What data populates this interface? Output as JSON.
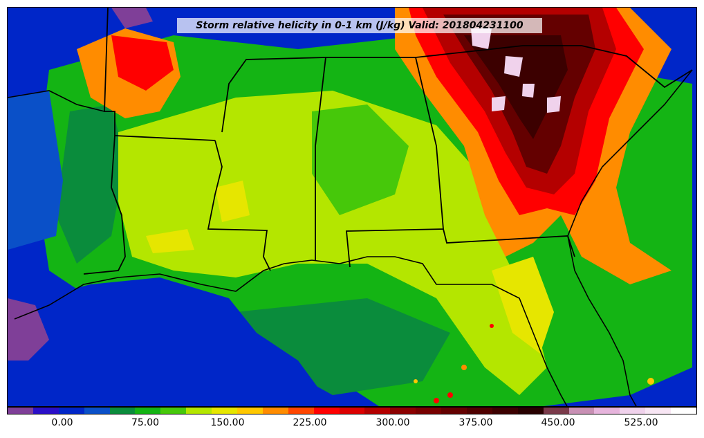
{
  "title": "Storm relative helicity in 0-1 km (J/kg) Valid: 201804231100",
  "colorbar": {
    "colors": [
      "#7f3f98",
      "#2a0fc8",
      "#0026c8",
      "#0a50c8",
      "#0a8c3c",
      "#14b414",
      "#46c80a",
      "#b4e600",
      "#e6e600",
      "#ffc800",
      "#ff8c00",
      "#ff4600",
      "#ff0000",
      "#dc0000",
      "#b40000",
      "#8c0000",
      "#780000",
      "#640000",
      "#500000",
      "#3c0000",
      "#280000",
      "#7a3a4a",
      "#c890b4",
      "#e6b4dc",
      "#f0d2ec",
      "#f8e6f4",
      "#ffffff"
    ],
    "tick_labels": [
      "0.00",
      "75.00",
      "150.00",
      "225.00",
      "300.00",
      "375.00",
      "450.00",
      "525.00"
    ]
  }
}
